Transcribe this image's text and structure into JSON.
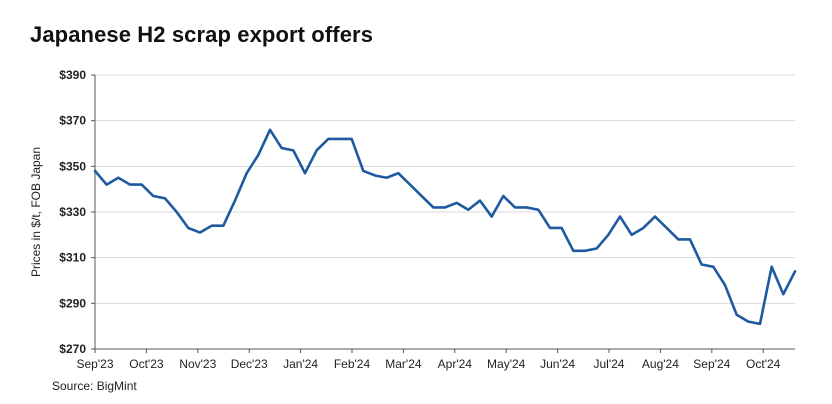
{
  "chart_data": {
    "type": "line",
    "title": "Japanese H2 scrap export offers",
    "xlabel": "",
    "ylabel": "Prices in $/t, FOB Japan",
    "source": "Source: BigMint",
    "ylim": [
      270,
      390
    ],
    "y_ticks": [
      270,
      290,
      310,
      330,
      350,
      370,
      390
    ],
    "y_tick_labels": [
      "$270",
      "$290",
      "$310",
      "$330",
      "$350",
      "$370",
      "$390"
    ],
    "x_tick_labels": [
      "Sep'23",
      "Oct'23",
      "Nov'23",
      "Dec'23",
      "Jan'24",
      "Feb'24",
      "Mar'24",
      "Apr'24",
      "May'24",
      "Jun'24",
      "Jul'24",
      "Aug'24",
      "Sep'24",
      "Oct'24"
    ],
    "grid": true,
    "legend": "none",
    "line_color": "#1f5aa0",
    "series": [
      {
        "values": [
          348,
          342,
          345,
          342,
          342,
          337,
          336,
          330,
          323,
          321,
          324,
          324,
          335,
          347,
          355,
          366,
          358,
          357,
          347,
          357,
          362,
          362,
          362,
          348,
          346,
          345,
          347,
          342,
          337,
          332,
          332,
          334,
          331,
          335,
          328,
          337,
          332,
          332,
          331,
          323,
          323,
          313,
          313,
          314,
          320,
          328,
          320,
          323,
          328,
          323,
          318,
          318,
          307,
          306,
          298,
          285,
          282,
          281,
          306,
          294,
          304
        ]
      }
    ]
  }
}
